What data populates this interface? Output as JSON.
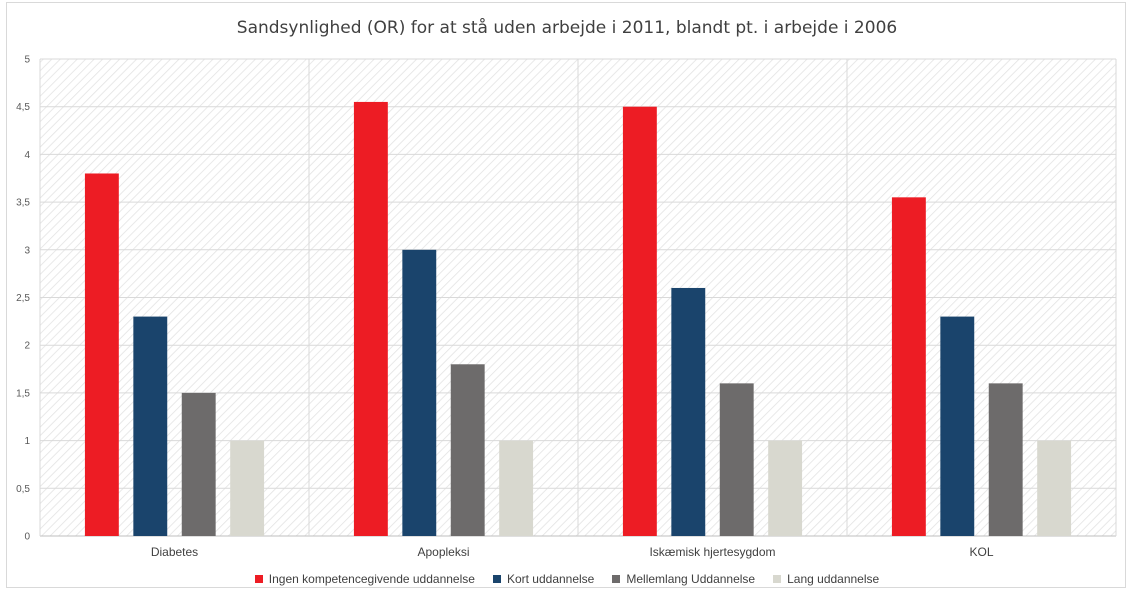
{
  "chart_data": {
    "type": "bar",
    "title": "Sandsynlighed (OR) for at stå uden arbejde i 2011, blandt pt. i arbejde i 2006",
    "categories": [
      "Diabetes",
      "Apopleksi",
      "Iskæmisk hjertesygdom",
      "KOL"
    ],
    "series": [
      {
        "name": "Ingen kompetencegivende uddannelse",
        "color": "#ed1c24",
        "values": [
          3.8,
          4.55,
          4.5,
          3.55
        ]
      },
      {
        "name": "Kort uddannelse",
        "color": "#1a446c",
        "values": [
          2.3,
          3.0,
          2.6,
          2.3
        ]
      },
      {
        "name": "Mellemlang Uddannelse",
        "color": "#6d6b6b",
        "values": [
          1.5,
          1.8,
          1.6,
          1.6
        ]
      },
      {
        "name": "Lang uddannelse",
        "color": "#d8d8cf",
        "values": [
          1.0,
          1.0,
          1.0,
          1.0
        ]
      }
    ],
    "ylim": [
      0,
      5
    ],
    "yticks": [
      "0",
      "0,5",
      "1",
      "1,5",
      "2",
      "2,5",
      "3",
      "3,5",
      "4",
      "4,5",
      "5"
    ],
    "grid": true,
    "legend": "bottom"
  }
}
